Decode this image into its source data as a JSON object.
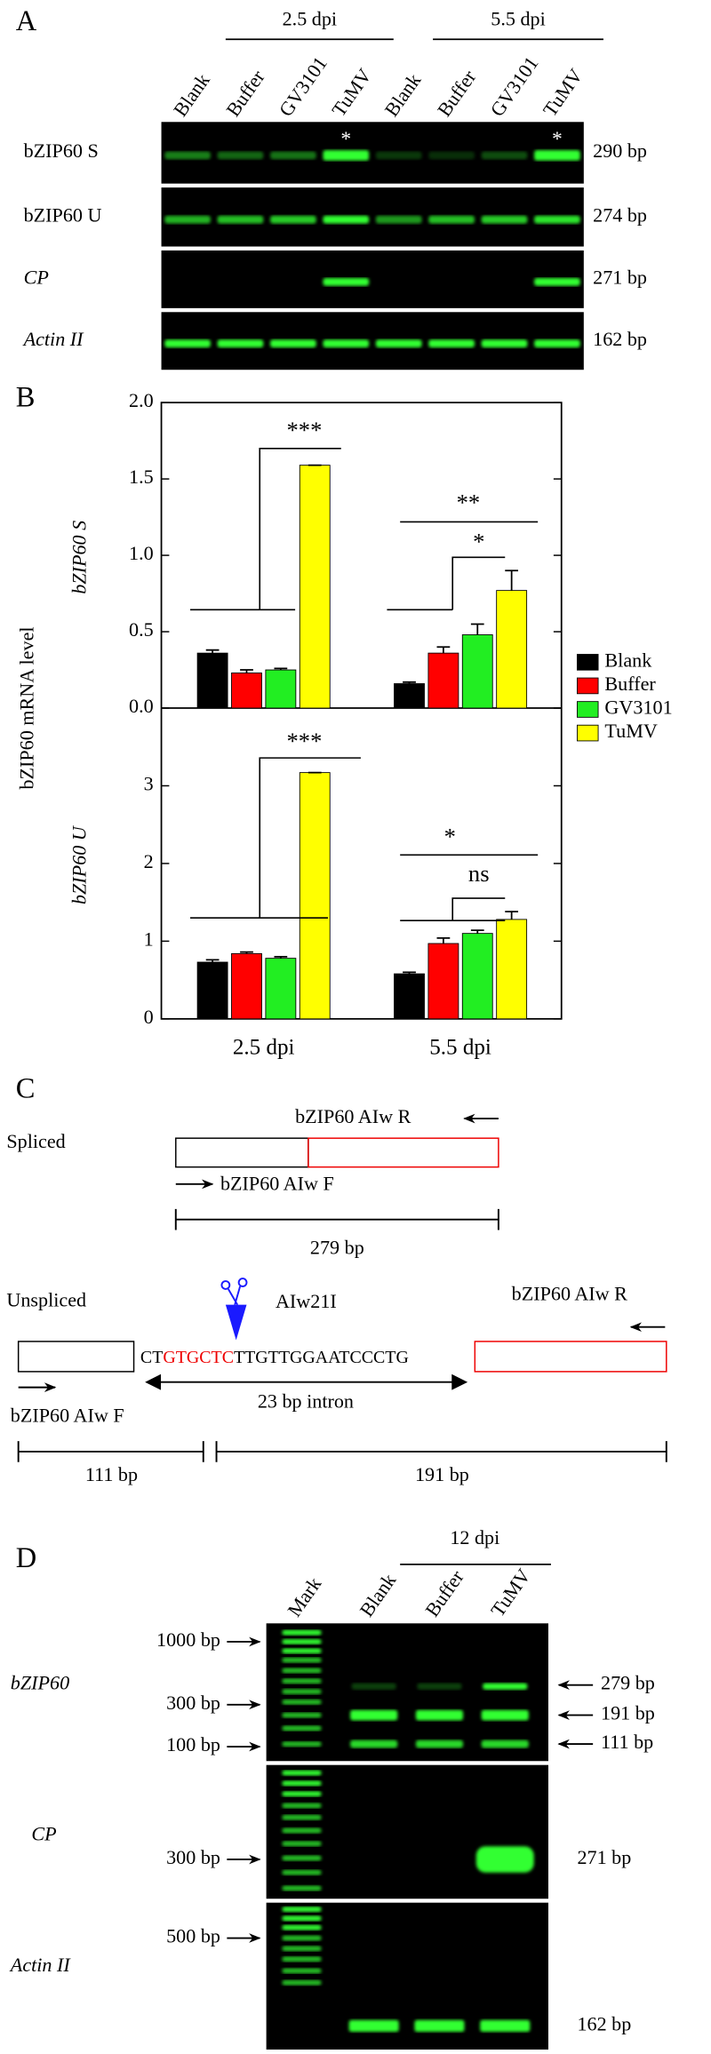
{
  "panel_a": {
    "label": "A",
    "groups": [
      "2.5 dpi",
      "5.5 dpi"
    ],
    "lanes": [
      "Blank",
      "Buffer",
      "GV3101",
      "TuMV",
      "Blank",
      "Buffer",
      "GV3101",
      "TuMV"
    ],
    "rows": [
      {
        "name": "bZIP60 S",
        "size": "290 bp",
        "marks": [
          "*",
          "*"
        ]
      },
      {
        "name": "bZIP60 U",
        "size": "274 bp"
      },
      {
        "name": "CP",
        "size": "271 bp"
      },
      {
        "name": "Actin II",
        "size": "162 bp"
      }
    ]
  },
  "panel_b": {
    "label": "B",
    "ylabel": "bZIP60 mRNA level"
  },
  "chart_data": [
    {
      "type": "bar",
      "ylabel": "bZIP60 S",
      "ylim": [
        0,
        2
      ],
      "yticks": [
        {
          "value": 0,
          "label": "0.0"
        },
        0.5,
        {
          "value": 1,
          "label": "1.0"
        },
        1.5,
        {
          "value": 2,
          "label": "2.0"
        }
      ],
      "series": [
        {
          "name": "Blank",
          "color": "#000000",
          "values": [
            0.36,
            0.16
          ],
          "errors": [
            0.02,
            0.01
          ]
        },
        {
          "name": "Buffer",
          "color": "#ff0000",
          "values": [
            0.23,
            0.36
          ],
          "errors": [
            0.02,
            0.04
          ]
        },
        {
          "name": "GV3101",
          "color": "#22ee22",
          "values": [
            0.25,
            0.48
          ],
          "errors": [
            0.01,
            0.07
          ]
        },
        {
          "name": "TuMV",
          "color": "#ffff00",
          "values": [
            1.59,
            0.77
          ],
          "errors": [
            0,
            0.13
          ]
        }
      ],
      "annotations": [
        "***",
        "**",
        "*"
      ]
    },
    {
      "type": "bar",
      "ylabel": "bZIP60 U",
      "categories": [
        "2.5 dpi",
        "5.5 dpi"
      ],
      "ylim": [
        0,
        4
      ],
      "yticks": [
        0,
        1,
        2,
        3
      ],
      "series": [
        {
          "color": "#000000",
          "values": [
            0.73,
            0.58
          ],
          "errors": [
            0.03,
            0.02
          ]
        },
        {
          "color": "#ff0000",
          "values": [
            0.84,
            0.97
          ],
          "errors": [
            0.02,
            0.07
          ]
        },
        {
          "color": "#22ee22",
          "values": [
            0.78,
            1.1
          ],
          "errors": [
            0.02,
            0.04
          ]
        },
        {
          "color": "#ffff00",
          "values": [
            3.17,
            1.28
          ],
          "errors": [
            0,
            0.1
          ]
        }
      ],
      "annotations": [
        "***",
        "*",
        "ns"
      ]
    }
  ],
  "panel_c": {
    "label": "C",
    "spliced": {
      "label": "Spliced",
      "reverse": "bZIP60 AIw R",
      "forward": "bZIP60 AIw F",
      "length": "279 bp"
    },
    "unspliced": {
      "label": "Unspliced",
      "enzyme": "AIw21I",
      "reverse": "bZIP60 AIw R",
      "forward": "bZIP60 AIw F",
      "sequence": [
        "CT",
        "GTGCTC",
        "TTGTTGGAATCCCTG"
      ],
      "intron": "23 bp intron",
      "lengths": [
        "111 bp",
        "191 bp"
      ]
    }
  },
  "panel_d": {
    "label": "D",
    "group": "12 dpi",
    "lanes": [
      "Mark",
      "Blank",
      "Buffer",
      "TuMV"
    ],
    "rows": [
      {
        "name": "bZIP60",
        "ladder": [
          "1000 bp",
          "300 bp",
          "100 bp"
        ],
        "sizes": [
          "279 bp",
          "191 bp",
          "111 bp"
        ]
      },
      {
        "name": "CP",
        "ladder": [
          "300 bp"
        ],
        "sizes": [
          "271 bp"
        ]
      },
      {
        "name": "Actin II",
        "ladder": [
          "500 bp"
        ],
        "sizes": [
          "162 bp"
        ]
      }
    ]
  }
}
